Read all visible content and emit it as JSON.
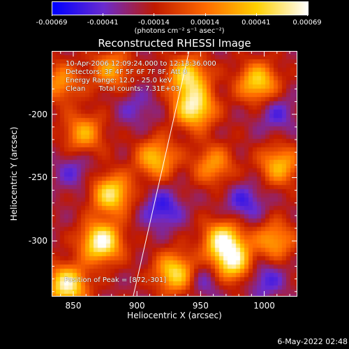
{
  "chart_data": {
    "type": "heatmap",
    "title": "Reconstructed RHESSI Image",
    "xlabel": "Heliocentric X (arcsec)",
    "ylabel": "Heliocentric Y (arcsec)",
    "xlim": [
      833,
      1026
    ],
    "ylim": [
      -344,
      -150
    ],
    "x_ticks": [
      850,
      900,
      950,
      1000
    ],
    "y_ticks": [
      -200,
      -250,
      -300
    ],
    "colorbar": {
      "range": [
        -0.00069,
        0.00069
      ],
      "tick_labels": [
        "-0.00069",
        "-0.00041",
        "-0.00014",
        "0.00014",
        "0.00041",
        "0.00069"
      ],
      "units": "(photons cm⁻² s⁻¹ asec⁻²)",
      "colors": [
        "#0000ff",
        "#6a2bd0",
        "#c01a00",
        "#ff6a00",
        "#ffd000",
        "#ffffff"
      ]
    },
    "annotations": {
      "time": "10-Apr-2006 12:09:24.000 to 12:13:36.000",
      "detectors": "Detectors: 3F 4F 5F 6F 7F 8F, Att 0",
      "energy": "Energy Range: 12.0 - 25.0 keV",
      "clean": "Clean      Total counts: 7.31E+03",
      "peak": "Position of Peak = [872,-301]"
    },
    "limb_line": {
      "x": [
        897,
        941
      ],
      "y": [
        -344,
        -150
      ]
    },
    "bright_regions": [
      {
        "x": 945,
        "y": -195,
        "intensity": 0.0006
      },
      {
        "x": 940,
        "y": -170,
        "intensity": 0.00048
      },
      {
        "x": 880,
        "y": -263,
        "intensity": 0.00052
      },
      {
        "x": 872,
        "y": -301,
        "intensity": 0.00069
      },
      {
        "x": 845,
        "y": -335,
        "intensity": 0.00062
      },
      {
        "x": 930,
        "y": -325,
        "intensity": 0.0005
      },
      {
        "x": 968,
        "y": -300,
        "intensity": 0.00058
      },
      {
        "x": 975,
        "y": -318,
        "intensity": 0.00052
      },
      {
        "x": 915,
        "y": -235,
        "intensity": 0.00038
      },
      {
        "x": 995,
        "y": -175,
        "intensity": 0.00046
      },
      {
        "x": 1012,
        "y": -240,
        "intensity": 0.00035
      },
      {
        "x": 1008,
        "y": -300,
        "intensity": 0.0003
      },
      {
        "x": 858,
        "y": -215,
        "intensity": 0.0003
      },
      {
        "x": 880,
        "y": -165,
        "intensity": 0.00028
      },
      {
        "x": 960,
        "y": -240,
        "intensity": 0.00025
      },
      {
        "x": 840,
        "y": -175,
        "intensity": 0.00024
      }
    ],
    "dim_regions": [
      {
        "x": 920,
        "y": -275,
        "intensity": -0.00055
      },
      {
        "x": 985,
        "y": -270,
        "intensity": -0.0005
      },
      {
        "x": 955,
        "y": -330,
        "intensity": -0.00045
      },
      {
        "x": 850,
        "y": -245,
        "intensity": -0.00042
      },
      {
        "x": 900,
        "y": -195,
        "intensity": -0.0004
      },
      {
        "x": 1010,
        "y": -200,
        "intensity": -0.00045
      },
      {
        "x": 1000,
        "y": -330,
        "intensity": -0.0005
      }
    ]
  },
  "footer": {
    "timestamp": "6-May-2022 02:48"
  }
}
